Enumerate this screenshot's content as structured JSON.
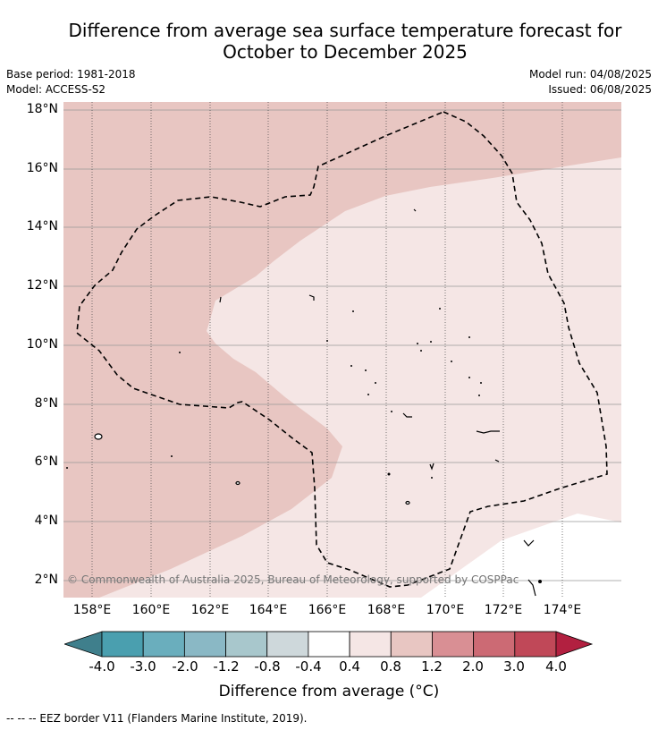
{
  "title_line1": "Difference from average sea surface temperature forecast for",
  "title_line2": "October to December 2025",
  "base_period": "Base period: 1981-2018",
  "model": "Model: ACCESS-S2",
  "model_run": "Model run: 04/08/2025",
  "issued": "Issued: 06/08/2025",
  "lat_labels": [
    "18°N",
    "16°N",
    "14°N",
    "12°N",
    "10°N",
    "8°N",
    "6°N",
    "4°N",
    "2°N"
  ],
  "lon_labels": [
    "158°E",
    "160°E",
    "162°E",
    "164°E",
    "166°E",
    "168°E",
    "170°E",
    "172°E",
    "174°E"
  ],
  "copyright": "© Commonwealth of Australia 2025, Bureau of Meteorology, supported by COSPPac",
  "colorbar": {
    "labels": [
      "-4.0",
      "-3.0",
      "-2.0",
      "-1.2",
      "-0.8",
      "-0.4",
      "0.4",
      "0.8",
      "1.2",
      "2.0",
      "3.0",
      "4.0"
    ],
    "colors": [
      "#4a9faf",
      "#6aaebd",
      "#8ab8c5",
      "#a8c7cc",
      "#ced8db",
      "#ffffff",
      "#f5e6e5",
      "#e8c6c2",
      "#d98f94",
      "#cc6a74",
      "#c04858"
    ],
    "under_color": "#3f7f8c",
    "over_color": "#b22040",
    "title": "Difference from average (°C)"
  },
  "footnote": "-- -- -- EEZ border V11 (Flanders Marine Institute, 2019)."
}
